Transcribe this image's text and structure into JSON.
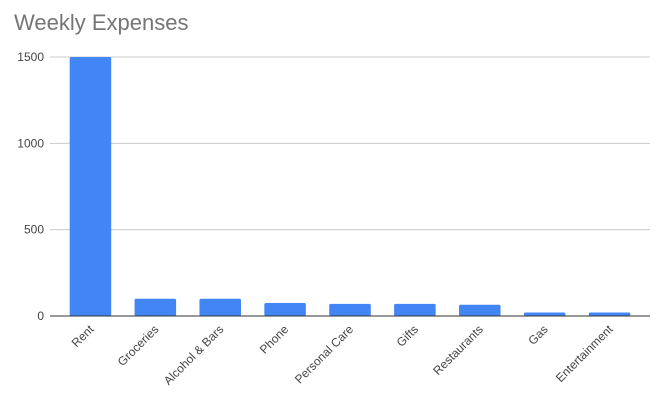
{
  "chart_data": {
    "type": "bar",
    "title": "Weekly Expenses",
    "xlabel": "",
    "ylabel": "",
    "categories": [
      "Rent",
      "Groceries",
      "Alcohol & Bars",
      "Phone",
      "Personal Care",
      "Gifts",
      "Restaurants",
      "Gas",
      "Entertainment"
    ],
    "values": [
      1500,
      100,
      100,
      75,
      70,
      70,
      65,
      20,
      20
    ],
    "ylim": [
      0,
      1500
    ],
    "yticks": [
      0,
      500,
      1000,
      1500
    ],
    "grid": true,
    "legend": "none",
    "colors": {
      "bar": "#4285f4",
      "grid": "#cccccc",
      "axis": "#333333",
      "title": "#757575",
      "label": "#444444"
    }
  }
}
